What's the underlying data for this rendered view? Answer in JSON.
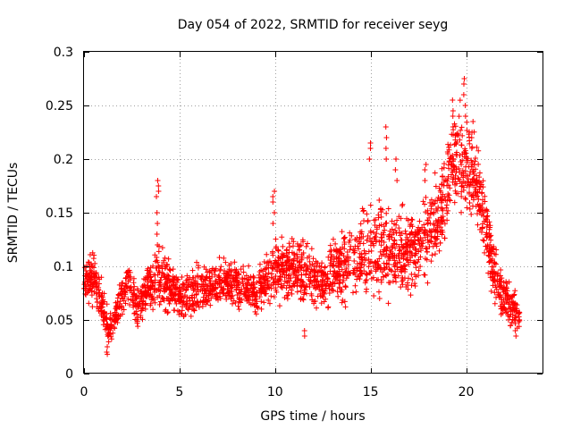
{
  "chart_data": {
    "type": "scatter",
    "title": "Day 054 of 2022, SRMTID for receiver seyg",
    "xlabel": "GPS time / hours",
    "ylabel": "SRMTID / TECUs",
    "xlim": [
      0,
      24.0
    ],
    "ylim": [
      0,
      0.3
    ],
    "x_ticks": [
      0,
      5,
      10,
      15,
      20
    ],
    "x_tick_labels": [
      "0",
      "5",
      "10",
      "15",
      "20"
    ],
    "y_ticks": [
      0,
      0.05,
      0.1,
      0.15,
      0.2,
      0.25,
      0.3
    ],
    "y_tick_labels": [
      "0",
      "0.05",
      "0.1",
      "0.15",
      "0.2",
      "0.25",
      "0.3"
    ],
    "grid": true,
    "marker": "plus",
    "colors": {
      "series": "#ff0000",
      "grid": "#a0a0a0",
      "axis": "#000000"
    },
    "x_end": 22.8,
    "envelope": {
      "description": "approximate central trend and spread of the plotted points, in TECU",
      "times": [
        0,
        0.5,
        1.0,
        1.3,
        1.8,
        2.3,
        2.8,
        3.3,
        4.0,
        5.0,
        6.0,
        7.0,
        8.0,
        9.0,
        9.8,
        10.5,
        11.5,
        12.5,
        13.5,
        14.5,
        15.5,
        16.5,
        17.5,
        18.5,
        19.3,
        19.9,
        20.5,
        21.0,
        21.5,
        22.0,
        22.5,
        22.8
      ],
      "center": [
        0.085,
        0.09,
        0.06,
        0.04,
        0.06,
        0.09,
        0.06,
        0.08,
        0.09,
        0.07,
        0.08,
        0.085,
        0.085,
        0.075,
        0.095,
        0.1,
        0.095,
        0.085,
        0.1,
        0.11,
        0.12,
        0.11,
        0.12,
        0.14,
        0.2,
        0.2,
        0.18,
        0.14,
        0.09,
        0.07,
        0.06,
        0.05
      ],
      "spread": [
        0.02,
        0.025,
        0.02,
        0.015,
        0.02,
        0.025,
        0.02,
        0.02,
        0.03,
        0.02,
        0.025,
        0.02,
        0.02,
        0.02,
        0.03,
        0.03,
        0.03,
        0.025,
        0.035,
        0.04,
        0.045,
        0.04,
        0.04,
        0.045,
        0.04,
        0.05,
        0.04,
        0.04,
        0.03,
        0.02,
        0.02,
        0.015
      ]
    },
    "spikes": [
      {
        "x": 3.85,
        "values": [
          0.18,
          0.175,
          0.17,
          0.165,
          0.15,
          0.14,
          0.13,
          0.12
        ]
      },
      {
        "x": 9.9,
        "values": [
          0.17,
          0.165,
          0.16,
          0.15,
          0.14
        ]
      },
      {
        "x": 14.95,
        "values": [
          0.215,
          0.21,
          0.2
        ]
      },
      {
        "x": 15.85,
        "values": [
          0.23,
          0.22,
          0.21,
          0.2
        ]
      },
      {
        "x": 16.35,
        "values": [
          0.2,
          0.19,
          0.18
        ]
      },
      {
        "x": 17.85,
        "values": [
          0.195,
          0.19,
          0.18
        ]
      },
      {
        "x": 19.35,
        "values": [
          0.255,
          0.245,
          0.24,
          0.23
        ]
      },
      {
        "x": 19.95,
        "values": [
          0.275,
          0.27,
          0.26,
          0.25,
          0.24
        ]
      },
      {
        "x": 20.3,
        "values": [
          0.235,
          0.225,
          0.22,
          0.21
        ]
      },
      {
        "x": 1.2,
        "values": [
          0.02,
          0.018,
          0.025
        ]
      },
      {
        "x": 11.5,
        "values": [
          0.035,
          0.04
        ]
      },
      {
        "x": 22.6,
        "values": [
          0.035,
          0.04
        ]
      }
    ]
  }
}
